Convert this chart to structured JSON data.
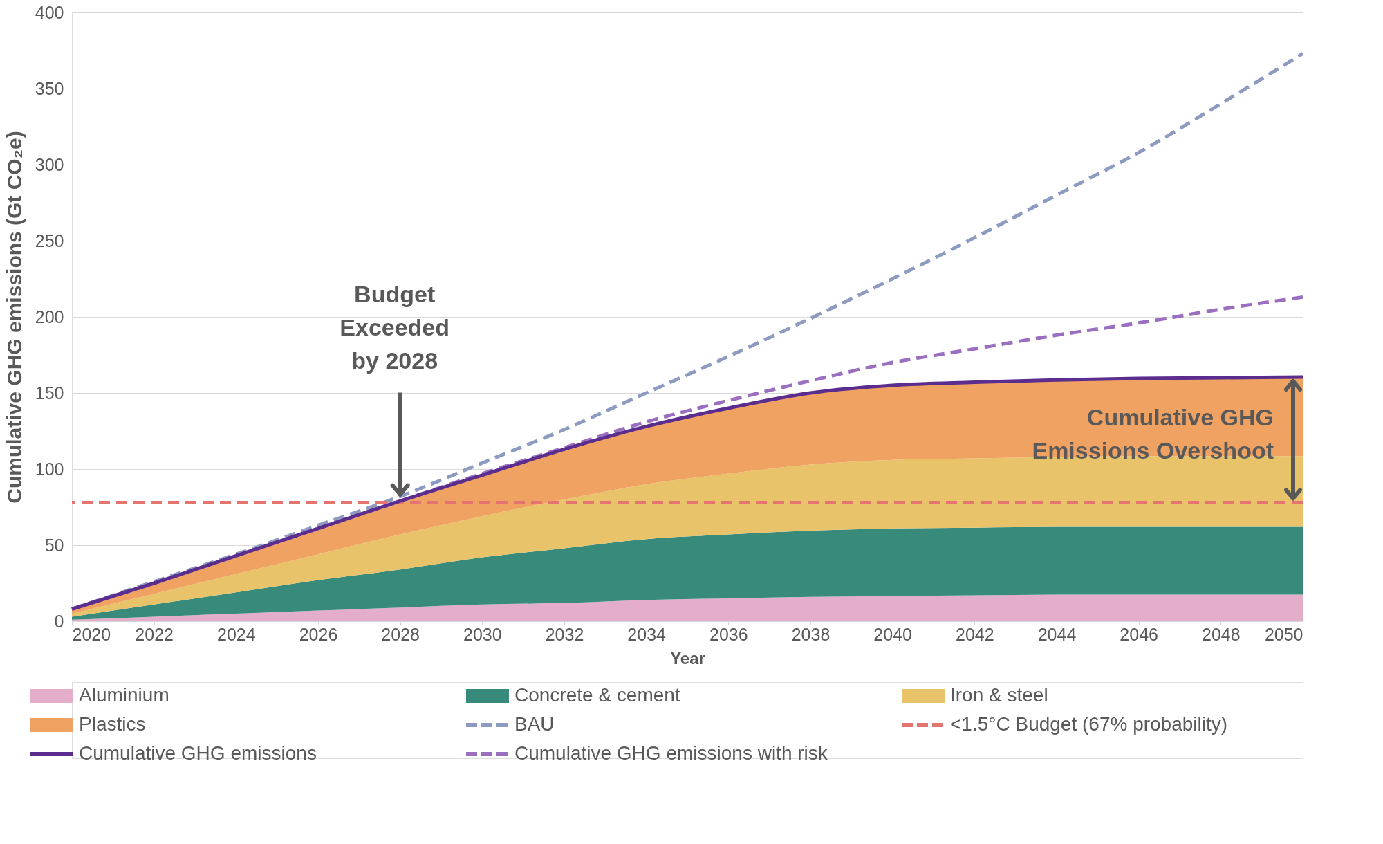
{
  "chart_data": {
    "type": "area",
    "stacked": true,
    "xlabel": "Year",
    "ylabel": "Cumulative GHG emissions (Gt CO₂e)",
    "x": [
      2020,
      2022,
      2024,
      2026,
      2028,
      2030,
      2032,
      2034,
      2036,
      2038,
      2040,
      2042,
      2044,
      2046,
      2048,
      2050
    ],
    "series": [
      {
        "name": "Aluminium",
        "color": "#e4aecb",
        "values": [
          1,
          3,
          5,
          7,
          9,
          11,
          12,
          14,
          15,
          16,
          16.5,
          17,
          17.5,
          17.5,
          17.5,
          17.5
        ]
      },
      {
        "name": "Concrete & cement",
        "color": "#388a7a",
        "values": [
          2,
          8,
          14,
          20,
          25,
          31,
          36,
          40,
          42,
          43.5,
          44.5,
          44.5,
          44.5,
          44.5,
          44.5,
          44.5
        ]
      },
      {
        "name": "Iron & steel",
        "color": "#e8c36a",
        "values": [
          2,
          7,
          12,
          17,
          23,
          27,
          32,
          36,
          40,
          43.5,
          45,
          45.5,
          46,
          46.5,
          46.5,
          46.5
        ]
      },
      {
        "name": "Plastics",
        "color": "#f0a262",
        "values": [
          3,
          7,
          12,
          17,
          22,
          27,
          33,
          38,
          43,
          47,
          49,
          50,
          50.5,
          51,
          51.5,
          52
        ]
      },
      {
        "name": "BAU",
        "type": "line",
        "line_style": "dashed",
        "color": "#8d9bc0",
        "values": [
          8,
          26,
          44,
          63,
          82,
          104,
          126,
          150,
          174,
          199,
          225,
          252,
          280,
          308,
          340,
          373
        ]
      },
      {
        "name": "Cumulative GHG emissions",
        "type": "line",
        "line_style": "solid",
        "color": "#5b2d8e",
        "values": [
          8,
          25,
          43,
          61,
          79,
          96,
          113,
          128,
          140,
          150,
          155,
          157,
          158.5,
          159.5,
          160,
          160.5
        ]
      },
      {
        "name": "Cumulative GHG emissions with risk",
        "type": "line",
        "line_style": "dashed",
        "color": "#9b6fbf",
        "values": [
          8,
          25,
          43,
          61,
          79,
          97,
          114,
          131,
          145,
          158,
          170,
          179,
          188,
          196,
          205,
          213
        ]
      }
    ],
    "ref_lines": [
      {
        "axis": "y",
        "value": 78,
        "label": "<1.5°C Budget (67% probability)",
        "color": "#e5736f",
        "line_style": "dashed"
      }
    ],
    "annotations": [
      {
        "text": "Budget\nExceeded\nby 2028",
        "x": 2028,
        "y": 82
      },
      {
        "text": "Cumulative GHG\nEmissions Overshoot",
        "x": 2050,
        "y": 133
      }
    ],
    "xlim": [
      2020,
      2050
    ],
    "xticks": [
      2020,
      2022,
      2024,
      2026,
      2028,
      2030,
      2032,
      2034,
      2036,
      2038,
      2040,
      2042,
      2044,
      2046,
      2048,
      2050
    ],
    "ylim": [
      0,
      400
    ],
    "yticks": [
      0,
      50,
      100,
      150,
      200,
      250,
      300,
      350,
      400
    ],
    "grid": "y",
    "legend": "bottom"
  }
}
